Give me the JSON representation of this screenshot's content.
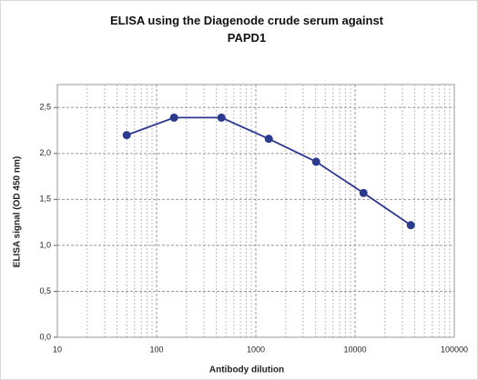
{
  "chart_data": {
    "type": "line",
    "title": "ELISA using the Diagenode crude serum against PAPD1",
    "xlabel": "Antibody dilution",
    "ylabel": "ELISA signal (OD 450 nm)",
    "x": [
      50,
      150,
      450,
      1350,
      4050,
      12150,
      36450
    ],
    "series": [
      {
        "name": "PAPD1",
        "color": "#2b3a8f",
        "values": [
          2.2,
          2.39,
          2.39,
          2.16,
          1.91,
          1.57,
          1.22
        ]
      }
    ],
    "xscale": "log",
    "xlim": [
      10,
      100000
    ],
    "xticks": [
      10,
      100,
      1000,
      10000,
      100000
    ],
    "ylim": [
      0,
      2.75
    ],
    "yticks": [
      {
        "value": 0,
        "label": "0,0"
      },
      {
        "value": 0.5,
        "label": "0,5"
      },
      {
        "value": 1,
        "label": "1,0"
      },
      {
        "value": 1.5,
        "label": "1,5"
      },
      {
        "value": 2,
        "label": "2,0"
      },
      {
        "value": 2.5,
        "label": "2,5"
      }
    ],
    "grid": true
  }
}
